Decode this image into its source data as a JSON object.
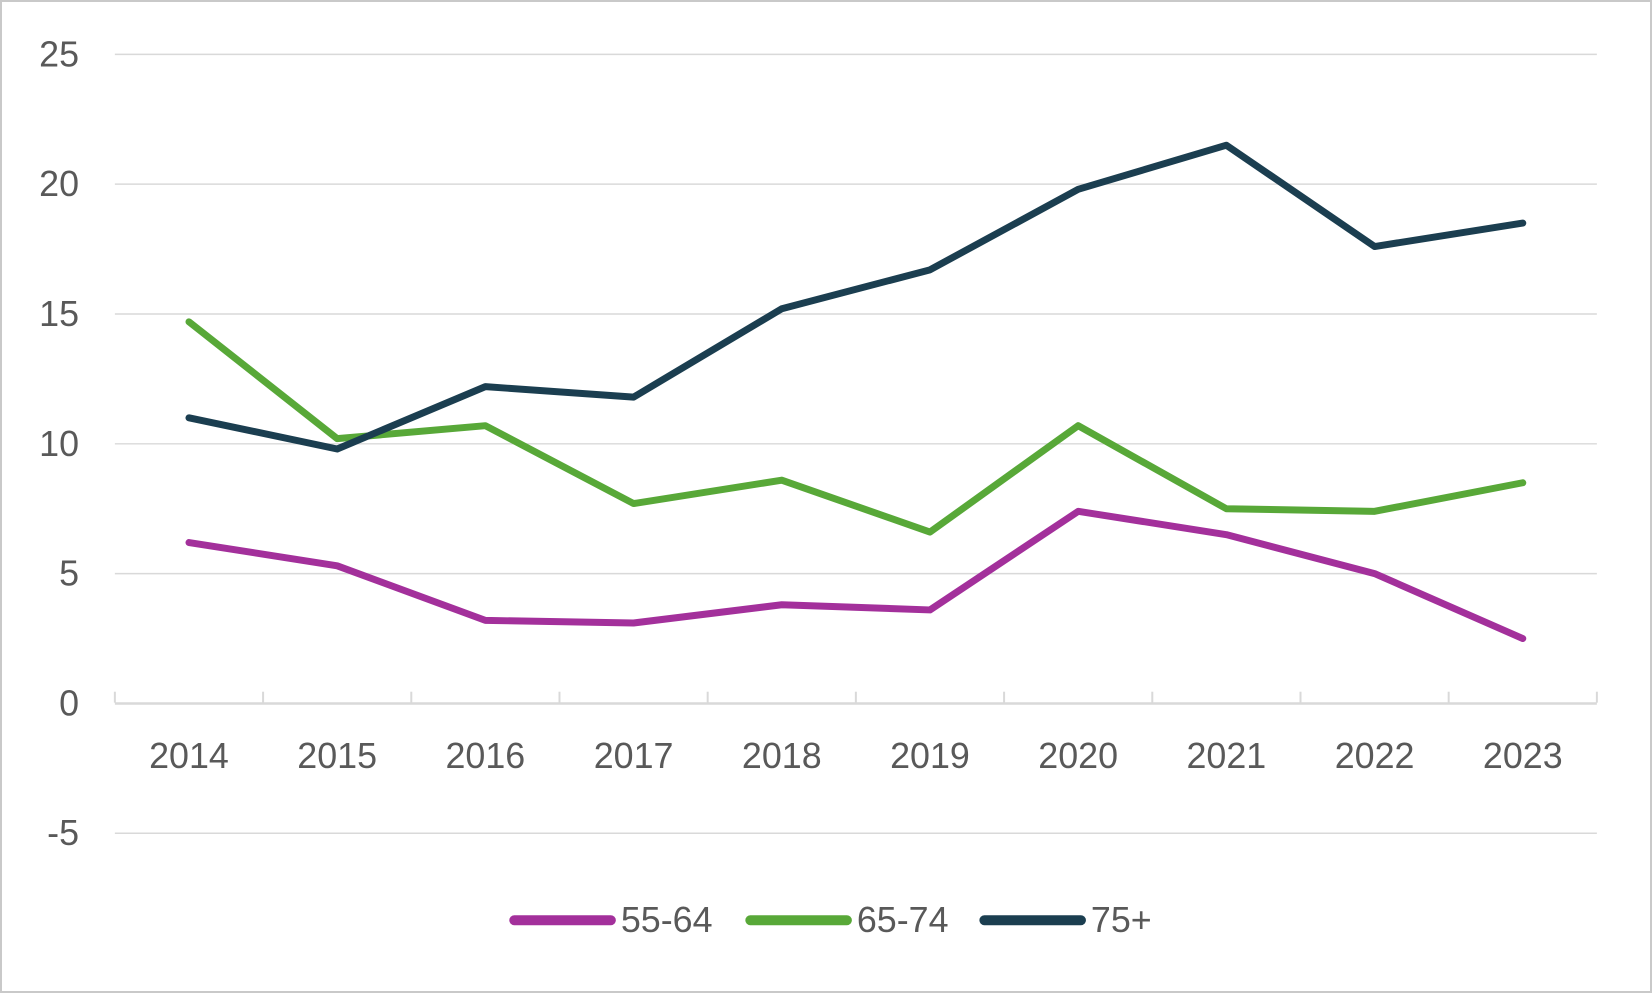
{
  "chart_data": {
    "type": "line",
    "title": "",
    "categories": [
      "2014",
      "2015",
      "2016",
      "2017",
      "2018",
      "2019",
      "2020",
      "2021",
      "2022",
      "2023"
    ],
    "series": [
      {
        "name": "55-64",
        "color": "#A3309B",
        "values": [
          6.2,
          5.3,
          3.2,
          3.1,
          3.8,
          3.6,
          7.4,
          6.5,
          5.0,
          2.5
        ]
      },
      {
        "name": "65-74",
        "color": "#58A838",
        "values": [
          14.7,
          10.2,
          10.7,
          7.7,
          8.6,
          6.6,
          10.7,
          7.5,
          7.4,
          8.5
        ]
      },
      {
        "name": "75+",
        "color": "#1B3E50",
        "values": [
          11.0,
          9.8,
          12.2,
          11.8,
          15.2,
          16.7,
          19.8,
          21.5,
          17.6,
          18.5
        ]
      }
    ],
    "y_axis": {
      "min": -5,
      "max": 25,
      "step": 5,
      "tick_labels": [
        "25",
        "20",
        "15",
        "10",
        "5",
        "0",
        "-5"
      ]
    },
    "x_axis": {
      "tick_labels": [
        "2014",
        "2015",
        "2016",
        "2017",
        "2018",
        "2019",
        "2020",
        "2021",
        "2022",
        "2023"
      ]
    },
    "grid": "horizontal",
    "legend_position": "bottom",
    "legend": [
      "55-64",
      "65-74",
      "75+"
    ],
    "colors": {
      "gridline": "#D9D9D9",
      "axis_line": "#D9D9D9",
      "tick": "#D9D9D9",
      "axis_text": "#595959",
      "background": "#FFFFFF",
      "border": "#C9C9C9"
    }
  }
}
